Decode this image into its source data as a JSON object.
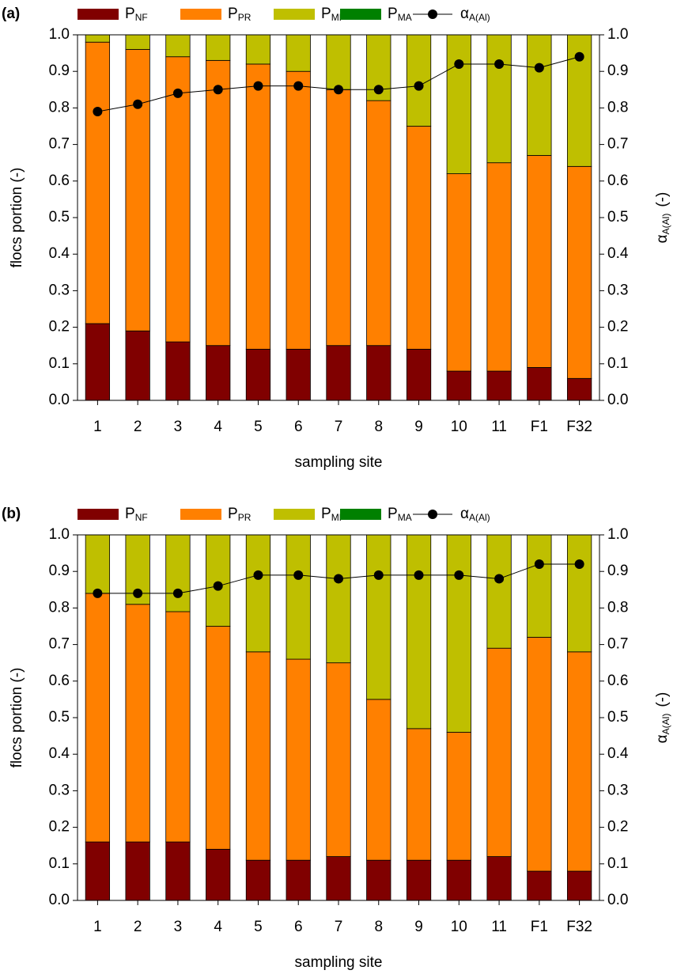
{
  "chart_data": [
    {
      "type": "stacked-bar-line",
      "label": "(a)",
      "xlabel": "sampling site",
      "ylabel": "flocs portion (-)",
      "y2label": {
        "text": "α",
        "sub": "A(Al)",
        "suffix": "(-)"
      },
      "categories": [
        "1",
        "2",
        "3",
        "4",
        "5",
        "6",
        "7",
        "8",
        "9",
        "10",
        "11",
        "F1",
        "F32"
      ],
      "ylim": [
        0,
        1
      ],
      "yticks": [
        {
          "value": 0,
          "label": "0.0"
        },
        0.1,
        0.2,
        0.3,
        0.4,
        0.5,
        0.6,
        0.7,
        0.8,
        0.9,
        {
          "value": 1,
          "label": "1.0"
        }
      ],
      "y2lim": [
        0,
        1
      ],
      "y2ticks": [
        {
          "value": 0,
          "label": "0.0"
        },
        0.1,
        0.2,
        0.3,
        0.4,
        0.5,
        0.6,
        0.7,
        0.8,
        0.9,
        {
          "value": 1,
          "label": "1.0"
        }
      ],
      "series": [
        {
          "name": "P",
          "subscript": "NF",
          "color": "#800000",
          "values": [
            0.21,
            0.19,
            0.16,
            0.15,
            0.14,
            0.14,
            0.15,
            0.15,
            0.14,
            0.08,
            0.08,
            0.09,
            0.06
          ]
        },
        {
          "name": "P",
          "subscript": "PR",
          "color": "#ff8000",
          "values": [
            0.77,
            0.77,
            0.78,
            0.78,
            0.78,
            0.76,
            0.7,
            0.67,
            0.61,
            0.54,
            0.57,
            0.58,
            0.58
          ]
        },
        {
          "name": "P",
          "subscript": "MI",
          "color": "#bfbf00",
          "values": [
            0.02,
            0.04,
            0.06,
            0.07,
            0.08,
            0.1,
            0.15,
            0.18,
            0.25,
            0.38,
            0.35,
            0.33,
            0.36
          ]
        },
        {
          "name": "P",
          "subscript": "MA",
          "color": "#008000",
          "values": [
            0,
            0,
            0,
            0,
            0,
            0,
            0,
            0,
            0,
            0,
            0,
            0,
            0
          ]
        },
        {
          "name": "α",
          "subscript": "A(Al)",
          "color": "#000000",
          "axis": "y2",
          "values": [
            0.79,
            0.81,
            0.84,
            0.85,
            0.86,
            0.86,
            0.85,
            0.85,
            0.86,
            0.92,
            0.92,
            0.91,
            0.94
          ]
        }
      ]
    },
    {
      "type": "stacked-bar-line",
      "label": "(b)",
      "xlabel": "sampling site",
      "ylabel": "flocs portion (-)",
      "y2label": {
        "text": "α",
        "sub": "A(Al)",
        "suffix": "(-)"
      },
      "categories": [
        "1",
        "2",
        "3",
        "4",
        "5",
        "6",
        "7",
        "8",
        "9",
        "10",
        "11",
        "F1",
        "F32"
      ],
      "ylim": [
        0,
        1
      ],
      "yticks": [
        {
          "value": 0,
          "label": "0.0"
        },
        0.1,
        0.2,
        0.3,
        0.4,
        0.5,
        0.6,
        0.7,
        0.8,
        0.9,
        {
          "value": 1,
          "label": "1.0"
        }
      ],
      "y2lim": [
        0,
        1
      ],
      "y2ticks": [
        {
          "value": 0,
          "label": "0.0"
        },
        0.1,
        0.2,
        0.3,
        0.4,
        0.5,
        0.6,
        0.7,
        0.8,
        0.9,
        {
          "value": 1,
          "label": "1.0"
        }
      ],
      "series": [
        {
          "name": "P",
          "subscript": "NF",
          "color": "#800000",
          "values": [
            0.16,
            0.16,
            0.16,
            0.14,
            0.11,
            0.11,
            0.12,
            0.11,
            0.11,
            0.11,
            0.12,
            0.08,
            0.08
          ]
        },
        {
          "name": "P",
          "subscript": "PR",
          "color": "#ff8000",
          "values": [
            0.68,
            0.65,
            0.63,
            0.61,
            0.57,
            0.55,
            0.53,
            0.44,
            0.36,
            0.35,
            0.57,
            0.64,
            0.6
          ]
        },
        {
          "name": "P",
          "subscript": "MI",
          "color": "#bfbf00",
          "values": [
            0.16,
            0.19,
            0.21,
            0.25,
            0.32,
            0.34,
            0.35,
            0.45,
            0.53,
            0.54,
            0.31,
            0.28,
            0.32
          ]
        },
        {
          "name": "P",
          "subscript": "MA",
          "color": "#008000",
          "values": [
            0,
            0,
            0,
            0,
            0,
            0,
            0,
            0,
            0,
            0,
            0,
            0,
            0
          ]
        },
        {
          "name": "α",
          "subscript": "A(Al)",
          "color": "#000000",
          "axis": "y2",
          "values": [
            0.84,
            0.84,
            0.84,
            0.86,
            0.89,
            0.89,
            0.88,
            0.89,
            0.89,
            0.89,
            0.88,
            0.92,
            0.92
          ]
        }
      ]
    }
  ]
}
